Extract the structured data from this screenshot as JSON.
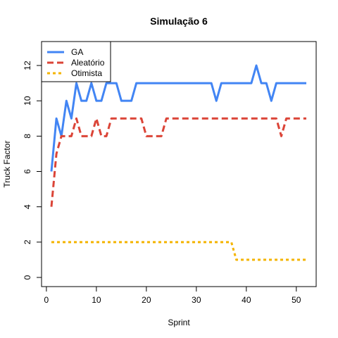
{
  "chart_data": {
    "type": "line",
    "title": "Simulação 6",
    "xlabel": "Sprint",
    "ylabel": "Truck Factor",
    "xlim": [
      1,
      52
    ],
    "ylim": [
      0,
      13
    ],
    "xticks": [
      0,
      10,
      20,
      30,
      40,
      50
    ],
    "yticks": [
      0,
      2,
      4,
      6,
      8,
      10,
      12
    ],
    "grid": false,
    "legend": "top-left",
    "series": [
      {
        "name": "GA",
        "color": "#4285F4",
        "style": "solid",
        "x": [
          1,
          2,
          3,
          4,
          5,
          6,
          7,
          8,
          9,
          10,
          11,
          12,
          13,
          14,
          15,
          16,
          17,
          18,
          19,
          20,
          21,
          22,
          23,
          24,
          25,
          26,
          27,
          28,
          29,
          30,
          31,
          32,
          33,
          34,
          35,
          36,
          37,
          38,
          39,
          40,
          41,
          42,
          43,
          44,
          45,
          46,
          47,
          48,
          49,
          50,
          51,
          52
        ],
        "values": [
          6,
          9,
          8,
          10,
          9,
          11,
          10,
          10,
          11,
          10,
          10,
          11,
          11,
          11,
          10,
          10,
          10,
          11,
          11,
          11,
          11,
          11,
          11,
          11,
          11,
          11,
          11,
          11,
          11,
          11,
          11,
          11,
          11,
          10,
          11,
          11,
          11,
          11,
          11,
          11,
          11,
          12,
          11,
          11,
          10,
          11,
          11,
          11,
          11,
          11,
          11,
          11
        ]
      },
      {
        "name": "Aleatório",
        "color": "#DB4437",
        "style": "dashed",
        "x": [
          1,
          2,
          3,
          4,
          5,
          6,
          7,
          8,
          9,
          10,
          11,
          12,
          13,
          14,
          15,
          16,
          17,
          18,
          19,
          20,
          21,
          22,
          23,
          24,
          25,
          26,
          27,
          28,
          29,
          30,
          31,
          32,
          33,
          34,
          35,
          36,
          37,
          38,
          39,
          40,
          41,
          42,
          43,
          44,
          45,
          46,
          47,
          48,
          49,
          50,
          51,
          52
        ],
        "values": [
          4,
          7,
          8,
          8,
          8,
          9,
          8,
          8,
          8,
          9,
          8,
          8,
          9,
          9,
          9,
          9,
          9,
          9,
          9,
          8,
          8,
          8,
          8,
          9,
          9,
          9,
          9,
          9,
          9,
          9,
          9,
          9,
          9,
          9,
          9,
          9,
          9,
          9,
          9,
          9,
          9,
          9,
          9,
          9,
          9,
          9,
          8,
          9,
          9,
          9,
          9,
          9
        ]
      },
      {
        "name": "Otimista",
        "color": "#F4B400",
        "style": "dotted",
        "x": [
          1,
          2,
          3,
          4,
          5,
          6,
          7,
          8,
          9,
          10,
          11,
          12,
          13,
          14,
          15,
          16,
          17,
          18,
          19,
          20,
          21,
          22,
          23,
          24,
          25,
          26,
          27,
          28,
          29,
          30,
          31,
          32,
          33,
          34,
          35,
          36,
          37,
          38,
          39,
          40,
          41,
          42,
          43,
          44,
          45,
          46,
          47,
          48,
          49,
          50,
          51,
          52
        ],
        "values": [
          2,
          2,
          2,
          2,
          2,
          2,
          2,
          2,
          2,
          2,
          2,
          2,
          2,
          2,
          2,
          2,
          2,
          2,
          2,
          2,
          2,
          2,
          2,
          2,
          2,
          2,
          2,
          2,
          2,
          2,
          2,
          2,
          2,
          2,
          2,
          2,
          2,
          1,
          1,
          1,
          1,
          1,
          1,
          1,
          1,
          1,
          1,
          1,
          1,
          1,
          1,
          1
        ]
      }
    ]
  }
}
